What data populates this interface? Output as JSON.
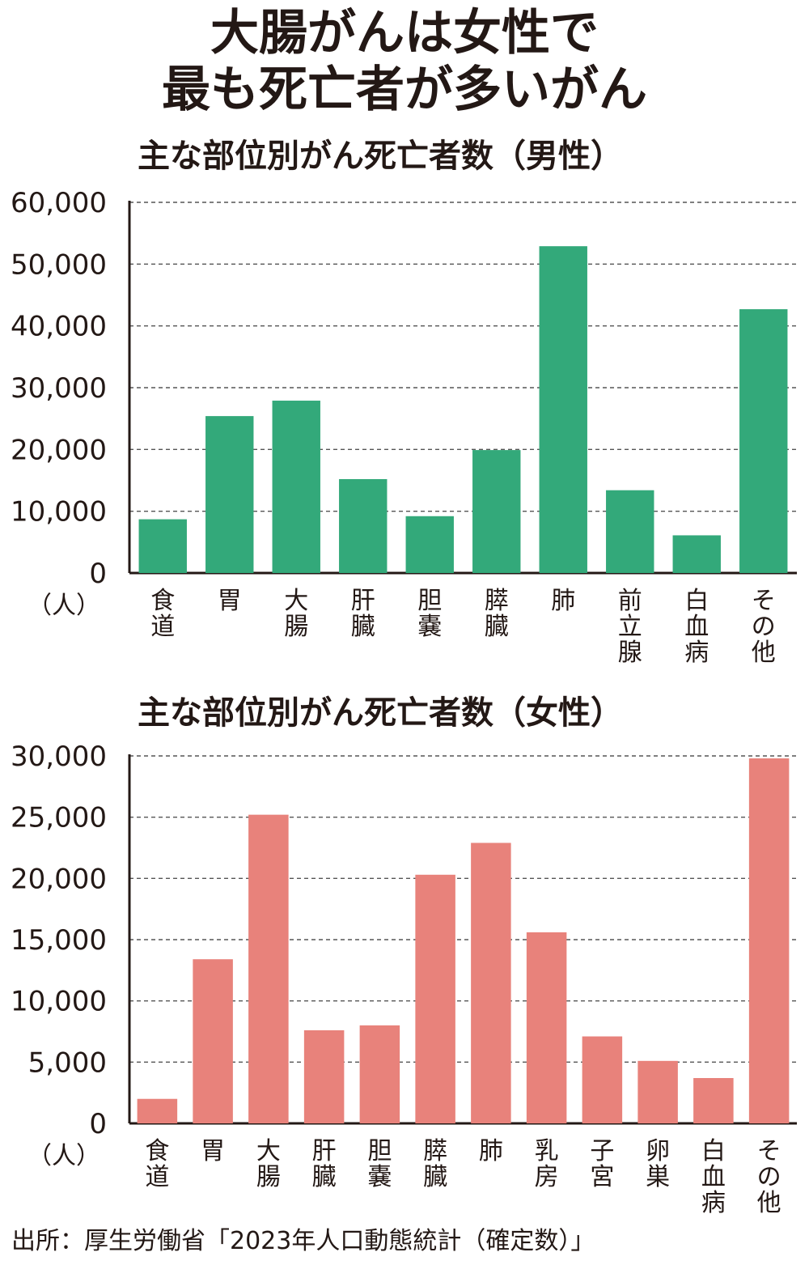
{
  "page": {
    "title_line1": "大腸がんは女性で",
    "title_line2": "最も死亡者が多いがん",
    "source": "出所：厚生労働省「2023年人口動態統計（確定数）」"
  },
  "chart_data": [
    {
      "type": "bar",
      "title": "主な部位別がん死亡者数（男性）",
      "ylabel": "（人）",
      "ylim": [
        0,
        60000
      ],
      "yticks": [
        0,
        10000,
        20000,
        30000,
        40000,
        50000,
        60000
      ],
      "ytick_labels": [
        "0",
        "10,000",
        "20,000",
        "30,000",
        "40,000",
        "50,000",
        "60,000"
      ],
      "categories": [
        "食道",
        "胃",
        "大腸",
        "肝臓",
        "胆嚢",
        "膵臓",
        "肺",
        "前立腺",
        "白血病",
        "その他"
      ],
      "values": [
        8700,
        25400,
        27900,
        15200,
        9200,
        19900,
        52900,
        13400,
        6100,
        42700
      ],
      "color": "#33a97a",
      "grid": true
    },
    {
      "type": "bar",
      "title": "主な部位別がん死亡者数（女性）",
      "ylabel": "（人）",
      "ylim": [
        0,
        30000
      ],
      "yticks": [
        0,
        5000,
        10000,
        15000,
        20000,
        25000,
        30000
      ],
      "ytick_labels": [
        "0",
        "5,000",
        "10,000",
        "15,000",
        "20,000",
        "25,000",
        "30,000"
      ],
      "categories": [
        "食道",
        "胃",
        "大腸",
        "肝臓",
        "胆嚢",
        "膵臓",
        "肺",
        "乳房",
        "子宮",
        "卵巣",
        "白血病",
        "その他"
      ],
      "values": [
        2000,
        13400,
        25200,
        7600,
        8000,
        20300,
        22900,
        15600,
        7100,
        5100,
        3700,
        29800
      ],
      "color": "#e8827b",
      "grid": true
    }
  ]
}
